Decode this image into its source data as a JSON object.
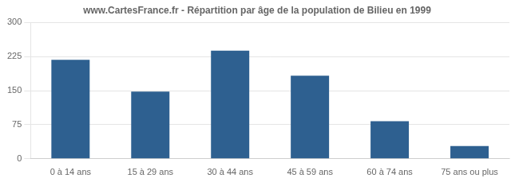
{
  "chart_data": {
    "type": "bar",
    "title": "www.CartesFrance.fr - Répartition par âge de la population de Bilieu en 1999",
    "categories": [
      "0 à 14 ans",
      "15 à 29 ans",
      "30 à 44 ans",
      "45 à 59 ans",
      "60 à 74 ans",
      "75 ans ou plus"
    ],
    "values": [
      218,
      148,
      238,
      183,
      83,
      28
    ],
    "color": "#2e6090",
    "ylim": [
      0,
      300
    ],
    "yticks": [
      0,
      75,
      150,
      225,
      300
    ],
    "grid": true
  }
}
